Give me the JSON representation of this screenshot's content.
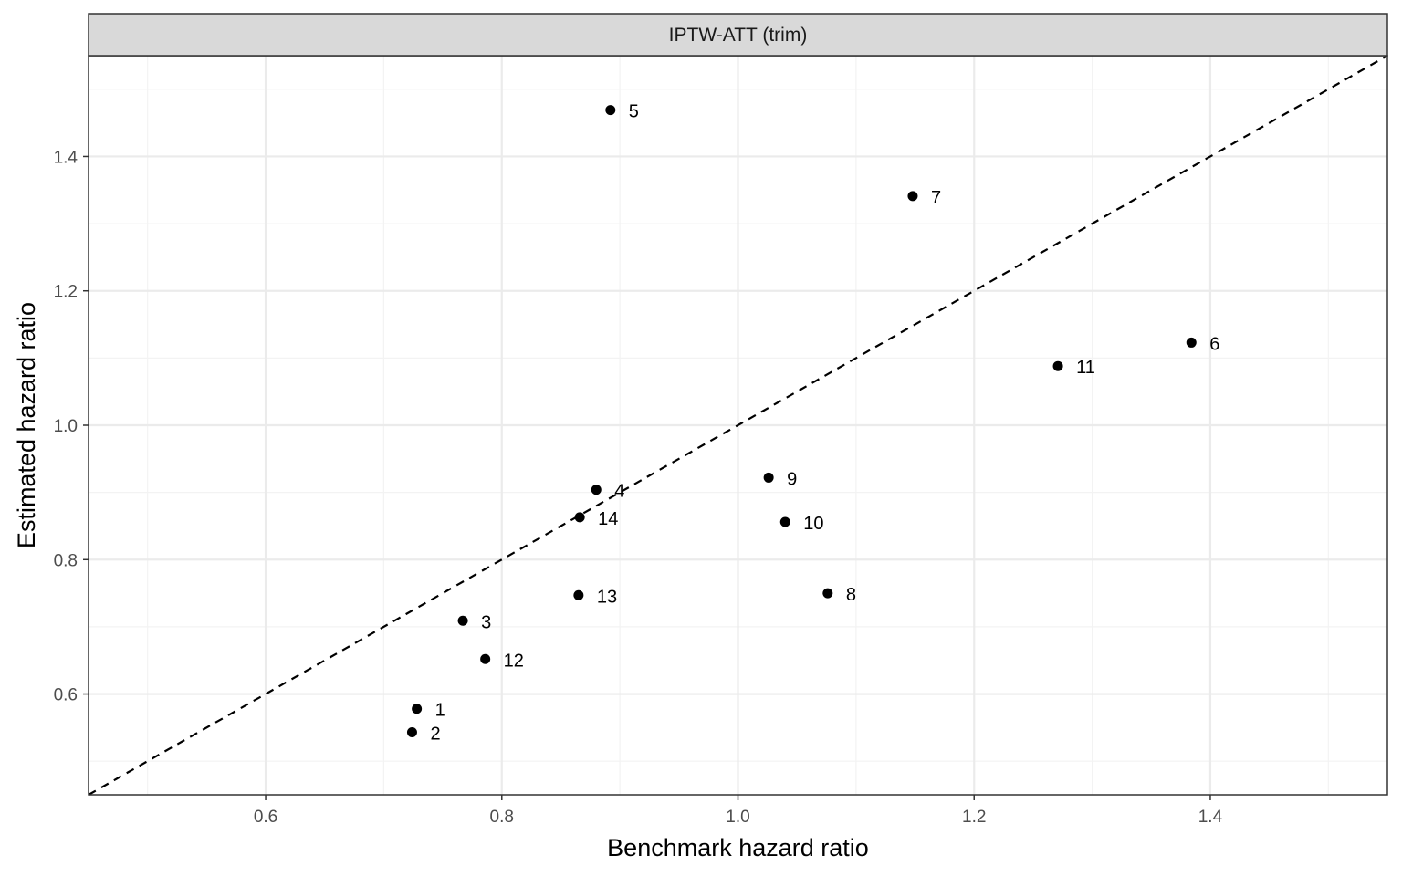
{
  "chart_data": {
    "type": "scatter",
    "facet_label": "IPTW-ATT (trim)",
    "xlabel": "Benchmark hazard ratio",
    "ylabel": "Estimated hazard ratio",
    "xlim": [
      0.45,
      1.55
    ],
    "ylim": [
      0.45,
      1.55
    ],
    "x_ticks": [
      0.6,
      0.8,
      1.0,
      1.2,
      1.4
    ],
    "x_tick_labels": [
      "0.6",
      "0.8",
      "1.0",
      "1.2",
      "1.4"
    ],
    "y_ticks": [
      0.6,
      0.8,
      1.0,
      1.2,
      1.4
    ],
    "y_tick_labels": [
      "0.6",
      "0.8",
      "1.0",
      "1.2",
      "1.4"
    ],
    "grid": true,
    "reference_line": {
      "type": "identity",
      "style": "dashed"
    },
    "points": [
      {
        "label": "1",
        "x": 0.728,
        "y": 0.578
      },
      {
        "label": "2",
        "x": 0.724,
        "y": 0.543
      },
      {
        "label": "3",
        "x": 0.767,
        "y": 0.709
      },
      {
        "label": "4",
        "x": 0.88,
        "y": 0.904
      },
      {
        "label": "5",
        "x": 0.892,
        "y": 1.469
      },
      {
        "label": "6",
        "x": 1.384,
        "y": 1.123
      },
      {
        "label": "7",
        "x": 1.148,
        "y": 1.341
      },
      {
        "label": "8",
        "x": 1.076,
        "y": 0.75
      },
      {
        "label": "9",
        "x": 1.026,
        "y": 0.922
      },
      {
        "label": "10",
        "x": 1.04,
        "y": 0.856
      },
      {
        "label": "11",
        "x": 1.271,
        "y": 1.088
      },
      {
        "label": "12",
        "x": 0.786,
        "y": 0.652
      },
      {
        "label": "13",
        "x": 0.865,
        "y": 0.747
      },
      {
        "label": "14",
        "x": 0.866,
        "y": 0.863
      }
    ],
    "colors": {
      "panel_border": "#333333",
      "strip_fill": "#d9d9d9",
      "grid_major": "#ebebeb",
      "grid_minor": "#f3f3f3",
      "points": "#000000"
    }
  }
}
